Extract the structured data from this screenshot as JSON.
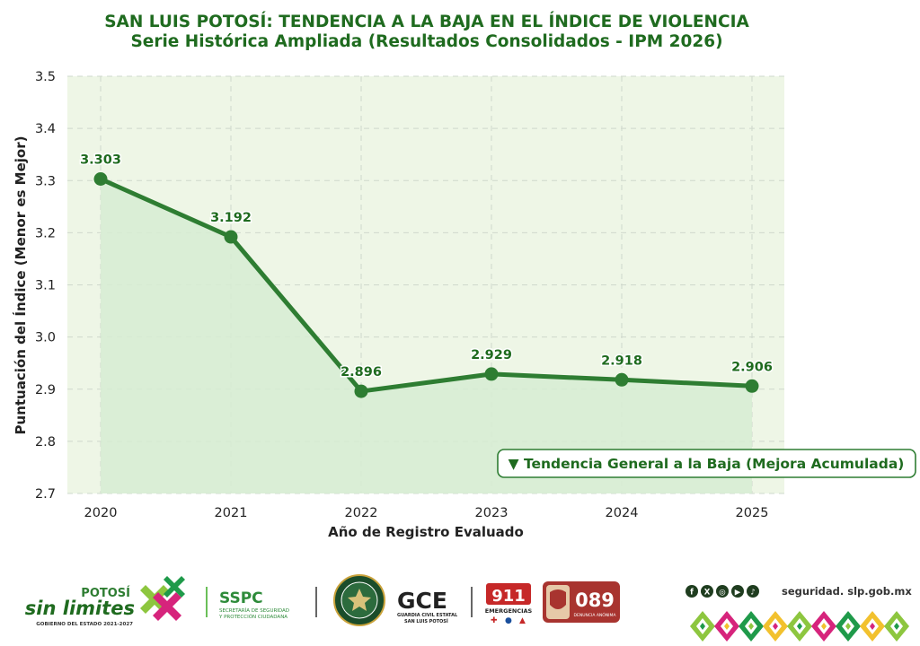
{
  "header": {
    "title": "SAN LUIS POTOSÍ: TENDENCIA A LA BAJA EN EL ÍNDICE DE VIOLENCIA",
    "subtitle": "Serie Histórica Ampliada (Resultados Consolidados - IPM 2026)"
  },
  "chart_data": {
    "type": "line",
    "title": "SAN LUIS POTOSÍ: TENDENCIA A LA BAJA EN EL ÍNDICE DE VIOLENCIA",
    "subtitle": "Serie Histórica Ampliada (Resultados Consolidados - IPM 2026)",
    "xlabel": "Año de Registro Evaluado",
    "ylabel": "Puntuación del Índice (Menor es Mejor)",
    "categories": [
      "2020",
      "2021",
      "2022",
      "2023",
      "2024",
      "2025"
    ],
    "series": [
      {
        "values": [
          3.303,
          3.192,
          2.896,
          2.929,
          2.918,
          2.906
        ]
      }
    ],
    "data_labels": [
      "3.303",
      "3.192",
      "2.896",
      "2.929",
      "2.918",
      "2.906"
    ],
    "ylim": [
      2.7,
      3.5
    ],
    "yticks": [
      2.7,
      2.8,
      2.9,
      3.0,
      3.1,
      3.2,
      3.3,
      3.4,
      3.5
    ],
    "ytick_labels": [
      "2.7",
      "2.8",
      "2.9",
      "3.0",
      "3.1",
      "3.2",
      "3.3",
      "3.4",
      "3.5"
    ],
    "grid": true,
    "area_fill": true,
    "annotation": "▼ Tendencia General a la Baja (Mejora Acumulada)",
    "colors": {
      "line": "#2e7d32",
      "area": "#d6ecd2",
      "plot_bg": "#eef6e6",
      "text": "#1f6b1f"
    }
  },
  "footer": {
    "brand_top": "POTOSÍ",
    "brand_main": "sin limites",
    "brand_sub": "GOBIERNO DEL ESTADO 2021-2027",
    "sspc": "SSPC",
    "sspc_sub1": "SECRETARÍA DE SEGURIDAD",
    "sspc_sub2": "Y PROTECCIÓN CIUDADANA",
    "gce": "GCE",
    "gce_sub1": "GUARDIA CIVIL ESTATAL",
    "gce_sub2": "SAN LUIS POTOSÍ",
    "n911": "911",
    "n911_sub": "EMERGENCIAS",
    "n089": "089",
    "n089_sub": "DENUNCIA ANÓNIMA",
    "social_icons": [
      "facebook-icon",
      "x-icon",
      "instagram-icon",
      "youtube-icon",
      "tiktok-icon"
    ],
    "website": "seguridad. slp.gob.mx"
  }
}
